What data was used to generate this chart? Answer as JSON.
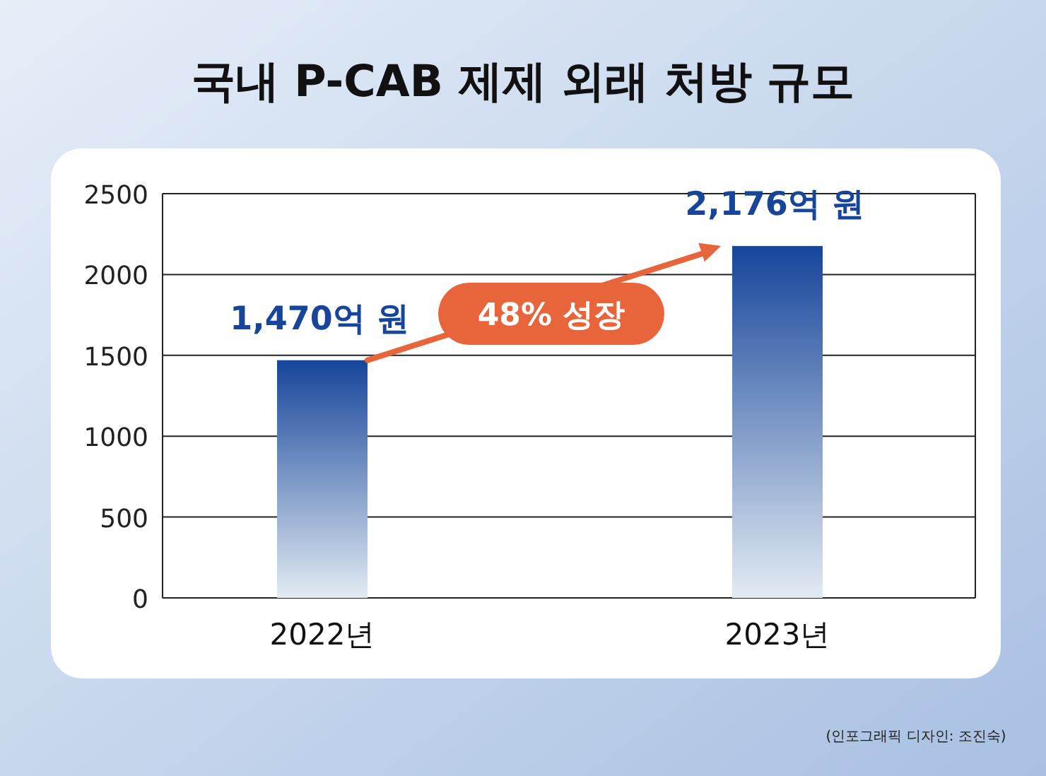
{
  "chart_data": {
    "type": "bar",
    "title": "국내 P-CAB 제제 외래 처방 규모",
    "categories": [
      "2022년",
      "2023년"
    ],
    "values": [
      1470,
      2176
    ],
    "value_labels": [
      "1,470억 원",
      "2,176억 원"
    ],
    "color": "#16459a",
    "ylim": [
      0,
      2500
    ],
    "yticks": [
      0,
      500,
      1000,
      1500,
      2000,
      2500
    ],
    "grid": "y",
    "annotations": [
      "48% 성장",
      "(인포그래픽 디자인: 조진숙)"
    ]
  }
}
